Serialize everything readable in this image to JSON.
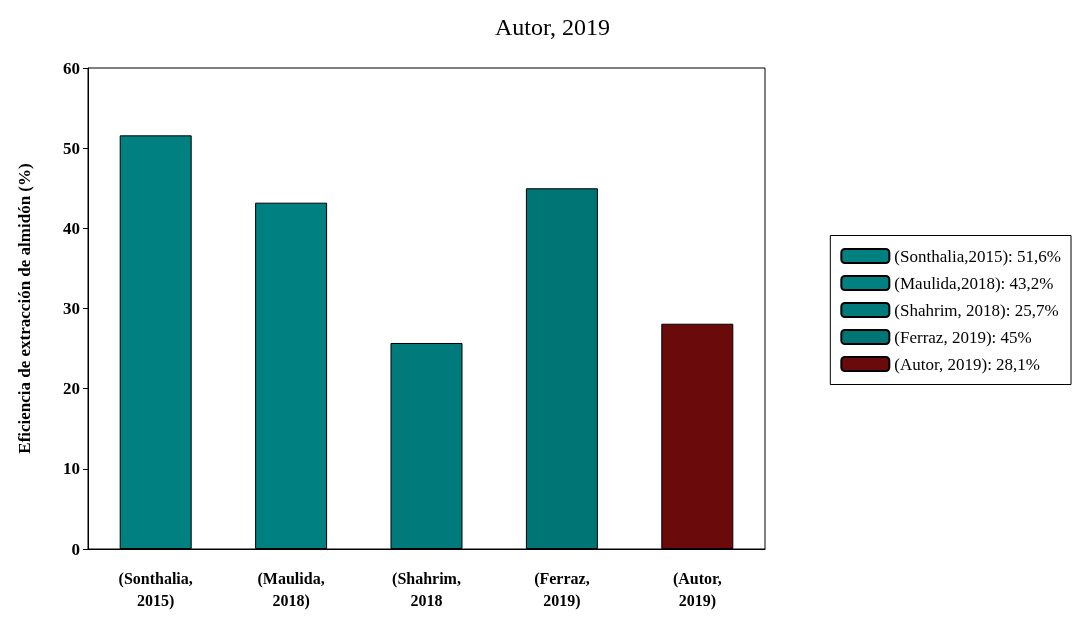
{
  "chart_data": {
    "type": "bar",
    "title": "Autor, 2019",
    "ylabel": "Eficiencia de extracción de almidón (%)",
    "categories": [
      "(Sonthalia,\n2015)",
      "(Maulida,\n2018)",
      "(Shahrim,\n2018",
      "(Ferraz,\n2019)",
      "(Autor,\n2019)"
    ],
    "series": [
      {
        "name": "(Sonthalia,2015): 51,6%",
        "color": "#008080",
        "values": [
          51.6,
          null,
          null,
          null,
          null
        ]
      },
      {
        "name": "(Maulida,2018): 43,2%",
        "color": "#008080",
        "values": [
          null,
          43.2,
          null,
          null,
          null
        ]
      },
      {
        "name": "(Shahrim, 2018): 25,7%",
        "color": "#007a7a",
        "values": [
          null,
          null,
          25.7,
          null,
          null
        ]
      },
      {
        "name": "(Ferraz, 2019): 45%",
        "color": "#007575",
        "values": [
          null,
          null,
          null,
          45,
          null
        ]
      },
      {
        "name": "(Autor, 2019): 28,1%",
        "color": "#6b0a0a",
        "values": [
          null,
          null,
          null,
          null,
          28.1
        ]
      }
    ],
    "ylim": [
      0,
      60
    ],
    "yticks": [
      0,
      10,
      20,
      30,
      40,
      50,
      60
    ],
    "grid": false,
    "legend": "right"
  }
}
